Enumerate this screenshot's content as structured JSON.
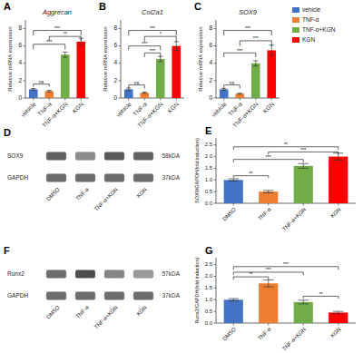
{
  "chart_data": [
    {
      "type": "bar",
      "title": "Aggrecan",
      "ylabel": "Relative mRNA expression",
      "categories": [
        "vehicle",
        "TNF-α",
        "TNF-α+KGN",
        "KGN"
      ],
      "values": [
        1.0,
        0.8,
        5.0,
        6.5
      ],
      "errors": [
        0.1,
        0.1,
        0.3,
        0.4
      ],
      "colors": [
        "#4472C4",
        "#ED7D31",
        "#70AD47",
        "#FF0000"
      ],
      "ylim": [
        0,
        9
      ],
      "yticks": [
        0,
        2,
        4,
        6,
        8
      ],
      "annotations": [
        {
          "text": "A"
        },
        {
          "text": "ns",
          "from": 0,
          "to": 1,
          "y": 1.3,
          "y_top": 1.6
        },
        {
          "text": "***",
          "from": 0,
          "to": 2,
          "y": 5.6,
          "y_top": 6.2
        },
        {
          "text": "***",
          "from": 0,
          "to": 3,
          "y": 7.2,
          "y_top": 7.8
        },
        {
          "text": "**",
          "from": 1,
          "to": 3,
          "y": 6.6,
          "y_top": 7.1
        }
      ]
    },
    {
      "type": "bar",
      "title": "Col2a1",
      "ylabel": "Relative mRNA expression",
      "categories": [
        "vehicle",
        "TNF-α",
        "TNF-α+KGN",
        "KGN"
      ],
      "values": [
        1.0,
        0.6,
        4.5,
        6.0
      ],
      "errors": [
        0.15,
        0.08,
        0.3,
        0.5
      ],
      "colors": [
        "#4472C4",
        "#ED7D31",
        "#70AD47",
        "#FF0000"
      ],
      "ylim": [
        0,
        9
      ],
      "yticks": [
        0,
        2,
        4,
        6,
        8
      ],
      "annotations": [
        {
          "text": "B"
        },
        {
          "text": "ns",
          "from": 0,
          "to": 1,
          "y": 1.1,
          "y_top": 1.5
        },
        {
          "text": "***",
          "from": 1,
          "to": 2,
          "y": 4.7,
          "y_top": 5.2
        },
        {
          "text": "***",
          "from": 0,
          "to": 2,
          "y": 5.5,
          "y_top": 6.0
        },
        {
          "text": "***",
          "from": 0,
          "to": 3,
          "y": 7.2,
          "y_top": 7.8
        },
        {
          "text": "*",
          "from": 1,
          "to": 3,
          "y": 6.5,
          "y_top": 7.1
        }
      ]
    },
    {
      "type": "bar",
      "title": "SOX9",
      "ylabel": "Relative mRNA expression",
      "categories": [
        "vehicle",
        "TNF-α",
        "TNF-α+KGN",
        "KGN"
      ],
      "values": [
        1.0,
        0.5,
        4.0,
        5.5
      ],
      "errors": [
        0.1,
        0.05,
        0.3,
        0.6
      ],
      "colors": [
        "#4472C4",
        "#ED7D31",
        "#70AD47",
        "#FF0000"
      ],
      "ylim": [
        0,
        9
      ],
      "yticks": [
        0,
        2,
        4,
        6,
        8
      ],
      "annotations": [
        {
          "text": "C"
        },
        {
          "text": "ns",
          "from": 0,
          "to": 1,
          "y": 1.1,
          "y_top": 1.5
        },
        {
          "text": "***",
          "from": 0,
          "to": 2,
          "y": 4.7,
          "y_top": 5.2
        },
        {
          "text": "***",
          "from": 1,
          "to": 3,
          "y": 6.0,
          "y_top": 6.6
        },
        {
          "text": "***",
          "from": 0,
          "to": 3,
          "y": 7.2,
          "y_top": 7.8
        }
      ]
    },
    {
      "type": "legend",
      "legend": "upper right",
      "series": [
        {
          "name": "vehicle",
          "color": "#4472C4"
        },
        {
          "name": "TNF-α",
          "color": "#ED7D31"
        },
        {
          "name": "TNF-α+KGN",
          "color": "#70AD47"
        },
        {
          "name": "KGN",
          "color": "#FF0000"
        }
      ]
    },
    {
      "type": "blot",
      "categories": [
        "DMSO",
        "TNF-α",
        "TNF-α+KGN",
        "KGN"
      ],
      "series": [
        {
          "name": "SOX9",
          "values": [
            0.38,
            0.55,
            0.35,
            0.38
          ]
        },
        {
          "name": "GAPDH",
          "values": [
            0.42,
            0.42,
            0.42,
            0.42
          ]
        }
      ],
      "annotations": [
        {
          "text": "D"
        },
        {
          "text": "58kDA",
          "row": 0
        },
        {
          "text": "37kDA",
          "row": 1
        }
      ]
    },
    {
      "type": "bar",
      "ylabel": "SOX9/GAPDH(fold induction)",
      "categories": [
        "DMSO",
        "TNF-α",
        "TNF-α+KGN",
        "KGN"
      ],
      "values": [
        1.0,
        0.5,
        1.6,
        2.0
      ],
      "errors": [
        0.05,
        0.05,
        0.1,
        0.15
      ],
      "colors": [
        "#4472C4",
        "#ED7D31",
        "#70AD47",
        "#FF0000"
      ],
      "ylim": [
        0,
        2.8
      ],
      "yticks": [
        {
          "value": 0.0,
          "label": "0.0"
        },
        0.5,
        {
          "value": 1.0,
          "label": "1.0"
        },
        1.5,
        {
          "value": 2.0,
          "label": "2.0"
        },
        2.5
      ],
      "annotations": [
        {
          "text": "E"
        },
        {
          "text": "**",
          "from": 0,
          "to": 1,
          "y": 1.08,
          "y_top": 1.18
        },
        {
          "text": "***",
          "from": 0,
          "to": 2,
          "y": 1.75,
          "y_top": 1.88
        },
        {
          "text": "***",
          "from": 1,
          "to": 3,
          "y": 2.08,
          "y_top": 2.2
        },
        {
          "text": "**",
          "from": 0,
          "to": 3,
          "y": 2.3,
          "y_top": 2.42
        }
      ]
    },
    {
      "type": "blot",
      "categories": [
        "DMSO",
        "TNF-α",
        "TNF-α+KGN",
        "KGN"
      ],
      "series": [
        {
          "name": "Runx2",
          "values": [
            0.42,
            0.3,
            0.52,
            0.6
          ]
        },
        {
          "name": "GAPDH",
          "values": [
            0.42,
            0.42,
            0.42,
            0.42
          ]
        }
      ],
      "annotations": [
        {
          "text": "F"
        },
        {
          "text": "57kDA",
          "row": 0
        },
        {
          "text": "37kDA",
          "row": 1
        }
      ]
    },
    {
      "type": "bar",
      "ylabel": "Runx2/GAPDH(fold induction)",
      "categories": [
        "DMSO",
        "TNF-α",
        "TNF-α+KGN",
        "KGN"
      ],
      "values": [
        1.0,
        1.7,
        0.9,
        0.45
      ],
      "errors": [
        0.05,
        0.15,
        0.08,
        0.05
      ],
      "colors": [
        "#4472C4",
        "#ED7D31",
        "#70AD47",
        "#FF0000"
      ],
      "ylim": [
        0,
        2.8
      ],
      "yticks": [
        {
          "value": 0.0,
          "label": "0.0"
        },
        0.5,
        {
          "value": 1.0,
          "label": "1.0"
        },
        1.5,
        {
          "value": 2.0,
          "label": "2.0"
        },
        2.5
      ],
      "annotations": [
        {
          "text": "G"
        },
        {
          "text": "**",
          "from": 0,
          "to": 1,
          "y": 1.85,
          "y_top": 1.98
        },
        {
          "text": "***",
          "from": 0,
          "to": 2,
          "y": 2.05,
          "y_top": 2.18
        },
        {
          "text": "***",
          "from": 0,
          "to": 3,
          "y": 2.28,
          "y_top": 2.42
        },
        {
          "text": "**",
          "from": 2,
          "to": 3,
          "y": 1.05,
          "y_top": 1.15
        }
      ]
    }
  ]
}
